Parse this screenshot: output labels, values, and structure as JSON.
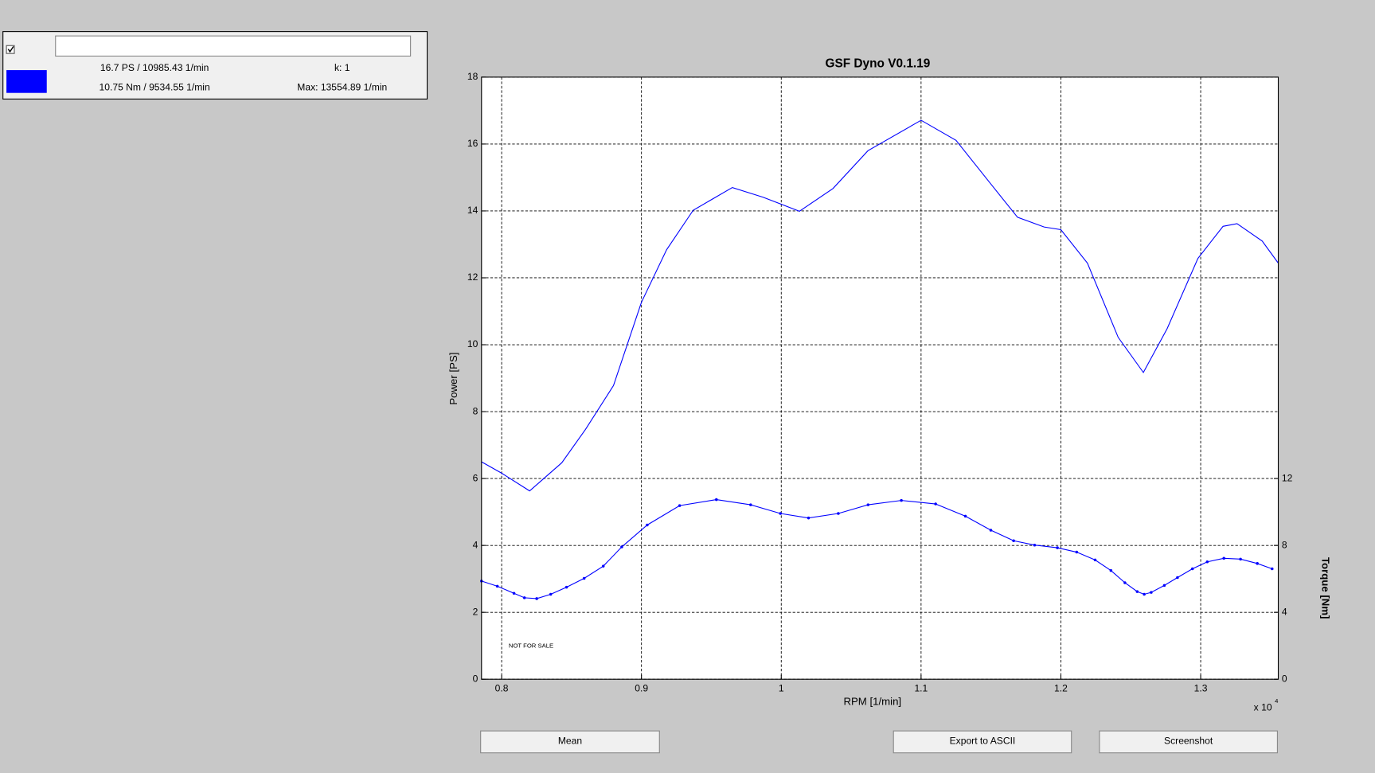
{
  "panel": {
    "power_readout": "16.7 PS / 10985.43 1/min",
    "k_readout": "k: 1",
    "torque_readout": "10.75 Nm / 9534.55 1/min",
    "max_readout": "Max: 13554.89 1/min"
  },
  "buttons": [
    "Mean",
    "Export to ASCII",
    "Screenshot"
  ],
  "chart_data": {
    "type": "line",
    "title": "GSF Dyno V0.1.19",
    "xlabel": "RPM [1/min]",
    "ylabel": "Power [PS]",
    "y2label": "Torque [Nm]",
    "annotation": "NOT FOR SALE",
    "x_multiplier": "x 10",
    "x_exponent": "4",
    "xlim": [
      7856,
      13555
    ],
    "xticks": [
      {
        "value": 8000,
        "label": "0.8"
      },
      {
        "value": 9000,
        "label": "0.9"
      },
      {
        "value": 10000,
        "label": "1"
      },
      {
        "value": 11000,
        "label": "1.1"
      },
      {
        "value": 12000,
        "label": "1.2"
      },
      {
        "value": 13000,
        "label": "1.3"
      }
    ],
    "ylim": [
      0,
      18
    ],
    "yticks": [
      0,
      2,
      4,
      6,
      8,
      10,
      12,
      14,
      16,
      18
    ],
    "y2lim": [
      0,
      36
    ],
    "y2ticks": [
      0,
      4,
      8,
      12
    ],
    "grid": true,
    "series": [
      {
        "color": "#0000ff",
        "markers": false,
        "x": [
          7856,
          8000,
          8200,
          8430,
          8600,
          8800,
          9000,
          9180,
          9370,
          9650,
          9870,
          10130,
          10370,
          10620,
          11000,
          11250,
          11500,
          11690,
          11880,
          12000,
          12190,
          12410,
          12590,
          12760,
          12980,
          13160,
          13260,
          13440,
          13555
        ],
        "values": [
          6.5,
          6.16,
          5.63,
          6.47,
          7.47,
          8.78,
          11.27,
          12.84,
          14.02,
          14.7,
          14.41,
          13.99,
          14.67,
          15.8,
          16.71,
          16.11,
          14.8,
          13.81,
          13.52,
          13.44,
          12.44,
          10.22,
          9.17,
          10.48,
          12.58,
          13.54,
          13.62,
          13.1,
          12.44
        ]
      },
      {
        "color": "#0000ff",
        "markers": true,
        "axis": "y2",
        "x": [
          7856,
          7969,
          8088,
          8163,
          8251,
          8351,
          8464,
          8590,
          8727,
          8859,
          9041,
          9273,
          9536,
          9781,
          9994,
          10195,
          10408,
          10621,
          10859,
          11104,
          11317,
          11499,
          11662,
          11812,
          11975,
          12113,
          12245,
          12358,
          12458,
          12546,
          12596,
          12646,
          12740,
          12834,
          12941,
          13047,
          13166,
          13285,
          13405,
          13511
        ],
        "values": [
          5.87,
          5.56,
          5.14,
          4.87,
          4.82,
          5.08,
          5.5,
          6.03,
          6.76,
          7.91,
          9.22,
          10.38,
          10.74,
          10.43,
          9.91,
          9.64,
          9.91,
          10.43,
          10.69,
          10.48,
          9.75,
          8.91,
          8.28,
          8.02,
          7.86,
          7.6,
          7.13,
          6.5,
          5.77,
          5.24,
          5.08,
          5.19,
          5.61,
          6.08,
          6.6,
          7.02,
          7.23,
          7.18,
          6.92,
          6.6
        ]
      }
    ]
  }
}
